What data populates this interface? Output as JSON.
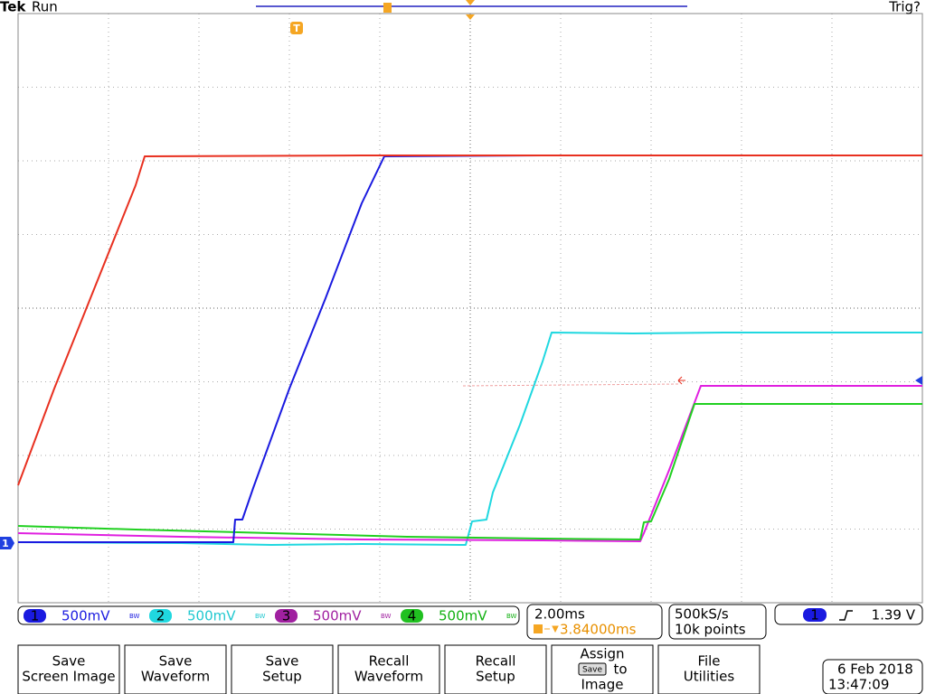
{
  "header": {
    "brand": "Tek",
    "status": "Run",
    "trigger_status": "Trig?"
  },
  "markers": {
    "trigger": "T",
    "ch1_ground": "1"
  },
  "channels": [
    {
      "number": "1",
      "scale": "500mV",
      "bw": "BW"
    },
    {
      "number": "2",
      "scale": "500mV",
      "bw": "BW"
    },
    {
      "number": "3",
      "scale": "500mV",
      "bw": "BW"
    },
    {
      "number": "4",
      "scale": "500mV",
      "bw": "BW"
    }
  ],
  "timebase": {
    "scale": "2.00ms",
    "position": "3.84000ms"
  },
  "acquisition": {
    "sample_rate": "500kS/s",
    "record_length": "10k points"
  },
  "trigger": {
    "source": "1",
    "level": "1.39 V"
  },
  "buttons": [
    {
      "lines": [
        "Save",
        "Screen Image"
      ]
    },
    {
      "lines": [
        "Save",
        "Waveform"
      ]
    },
    {
      "lines": [
        "Save",
        "Setup"
      ]
    },
    {
      "lines": [
        "Recall",
        "Waveform"
      ]
    },
    {
      "lines": [
        "Recall",
        "Setup"
      ]
    },
    {
      "lines": [
        "Assign",
        "to",
        "Image"
      ],
      "icon": "Save"
    },
    {
      "lines": [
        "File",
        "Utilities"
      ]
    }
  ],
  "datetime": {
    "date": "6 Feb 2018",
    "time": "13:47:09"
  }
}
